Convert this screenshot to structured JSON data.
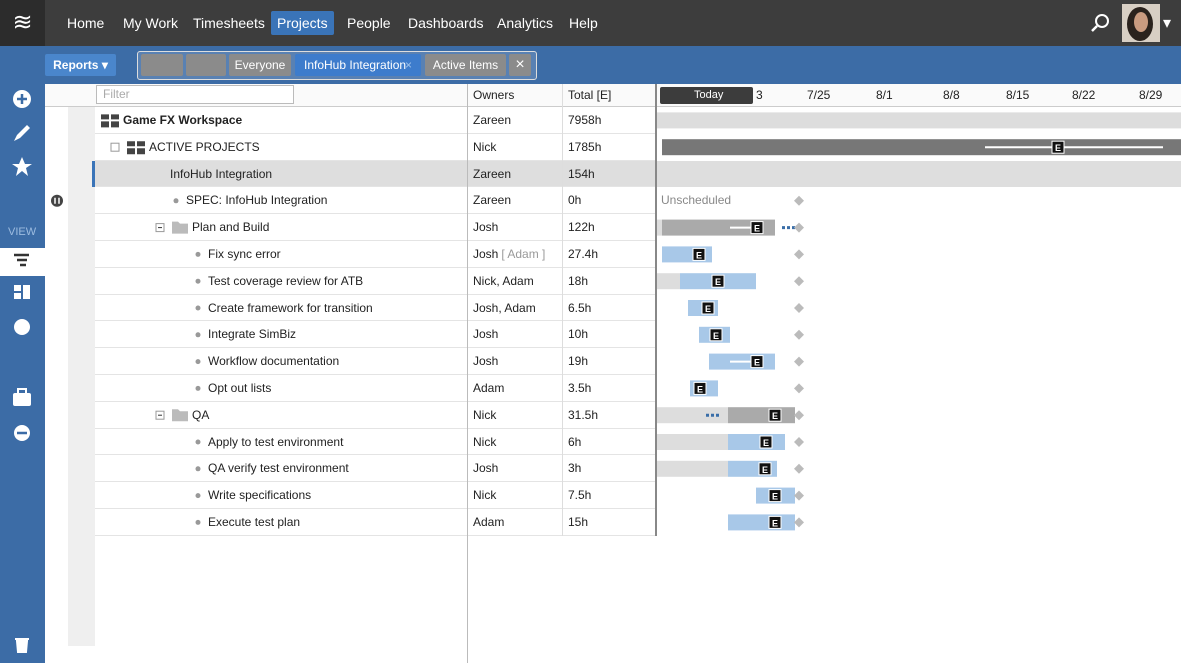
{
  "nav": {
    "logo": "≋",
    "items": [
      "Home",
      "My Work",
      "Timesheets",
      "Projects",
      "People",
      "Dashboards",
      "Analytics",
      "Help"
    ],
    "active": "Projects",
    "menu_caret": "▾"
  },
  "toolbar": {
    "reports": "Reports ▾",
    "filters": [
      "Everyone",
      "InfoHub Integration",
      "Active Items"
    ],
    "active_filter": "InfoHub Integration",
    "close": "×"
  },
  "sidebar": {
    "view_label": "VIEW"
  },
  "grid": {
    "filter_placeholder": "Filter",
    "columns": [
      "Owners",
      "Total [E]"
    ],
    "today": "Today",
    "dates": [
      "3",
      "7/25",
      "8/1",
      "8/8",
      "8/15",
      "8/22",
      "8/29"
    ],
    "badge": "E",
    "rows": [
      {
        "name": "Game FX Workspace",
        "owner": "Zareen",
        "total": "7958h"
      },
      {
        "name": "ACTIVE PROJECTS",
        "owner": "Nick",
        "total": "1785h"
      },
      {
        "name": "InfoHub Integration",
        "owner": "Zareen",
        "total": "154h"
      },
      {
        "name": "SPEC: InfoHub Integration",
        "owner": "Zareen",
        "total": "0h",
        "schedule": "Unscheduled"
      },
      {
        "name": "Plan and Build",
        "owner": "Josh",
        "total": "122h"
      },
      {
        "name": "Fix sync error",
        "owner": "Josh",
        "owner_note": "[ Adam ]",
        "total": "27.4h"
      },
      {
        "name": "Test coverage review for ATB",
        "owner": "Nick, Adam",
        "total": "18h"
      },
      {
        "name": "Create framework for transition",
        "owner": "Josh, Adam",
        "total": "6.5h"
      },
      {
        "name": "Integrate SimBiz",
        "owner": "Josh",
        "total": "10h"
      },
      {
        "name": "Workflow documentation",
        "owner": "Josh",
        "total": "19h"
      },
      {
        "name": "Opt out lists",
        "owner": "Adam",
        "total": "3.5h"
      },
      {
        "name": "QA",
        "owner": "Nick",
        "total": "31.5h"
      },
      {
        "name": "Apply to test environment",
        "owner": "Nick",
        "total": "6h"
      },
      {
        "name": "QA verify test environment",
        "owner": "Josh",
        "total": "3h"
      },
      {
        "name": "Write specifications",
        "owner": "Nick",
        "total": "7.5h"
      },
      {
        "name": "Execute test plan",
        "owner": "Adam",
        "total": "15h"
      }
    ]
  }
}
